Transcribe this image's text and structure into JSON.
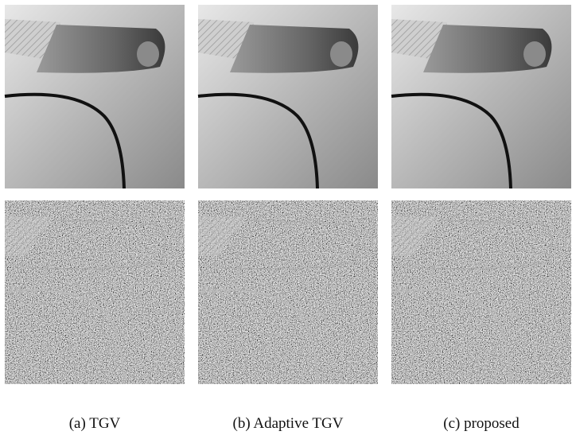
{
  "figure": {
    "panels": [
      {
        "caption": "(a) TGV"
      },
      {
        "caption": "(b) Adaptive TGV"
      },
      {
        "caption": "(c) proposed"
      }
    ]
  }
}
